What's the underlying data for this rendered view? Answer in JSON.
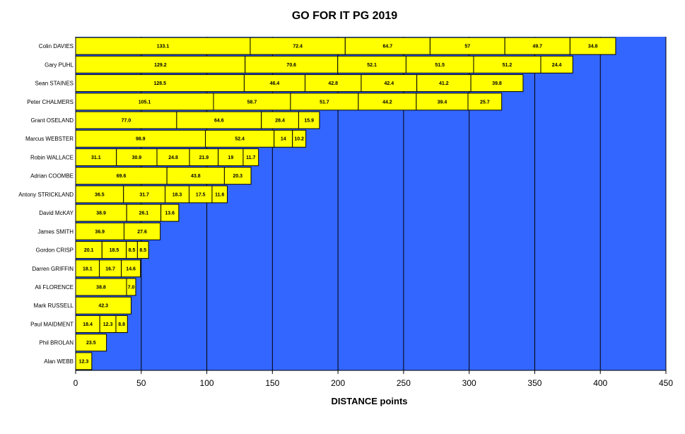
{
  "chart_data": {
    "type": "bar",
    "orientation": "horizontal",
    "stacked": true,
    "title": "GO FOR IT PG 2019",
    "xlabel": "DISTANCE points",
    "ylabel": "",
    "xlim": [
      0,
      450
    ],
    "xticks": [
      0,
      50,
      100,
      150,
      200,
      250,
      300,
      350,
      400,
      450
    ],
    "grid": "vertical",
    "legend": "none",
    "colors": {
      "plot_area": "#3366ff",
      "bar": "#ffff00",
      "bar_edge": "#000000",
      "gridline": "#000000"
    },
    "categories": [
      "Colin DAVIES",
      "Gary PUHL",
      "Sean STAINES",
      "Peter CHALMERS",
      "Grant OSELAND",
      "Marcus WEBSTER",
      "Robin WALLACE",
      "Adrian COOMBE",
      "Antony STRICKLAND",
      "David McKAY",
      "James SMITH",
      "Gordon CRISP",
      "Darren GRIFFIN",
      "Ali FLORENCE",
      "Mark RUSSELL",
      "Paul MAIDMENT",
      "Phil BROLAN",
      "Alan WEBB"
    ],
    "segments": [
      [
        133.1,
        72.4,
        64.7,
        57,
        49.7,
        34.8
      ],
      [
        129.2,
        70.6,
        52.1,
        51.5,
        51.2,
        24.4
      ],
      [
        128.5,
        46.4,
        42.8,
        42.4,
        41.2,
        39.8
      ],
      [
        105.1,
        58.7,
        51.7,
        44.2,
        39.4,
        25.7
      ],
      [
        77.0,
        64.6,
        28.4,
        15.9
      ],
      [
        98.9,
        52.4,
        14,
        10.2
      ],
      [
        31.1,
        30.9,
        24.8,
        21.9,
        19,
        11.7
      ],
      [
        69.6,
        43.8,
        20.3
      ],
      [
        36.5,
        31.7,
        18.3,
        17.5,
        11.6
      ],
      [
        38.9,
        26.1,
        13.6
      ],
      [
        36.9,
        27.6
      ],
      [
        20.1,
        18.5,
        8.5,
        8.5
      ],
      [
        18.1,
        16.7,
        14.6
      ],
      [
        38.8,
        7.0
      ],
      [
        42.3
      ],
      [
        18.4,
        12.3,
        8.8
      ],
      [
        23.5
      ],
      [
        12.3
      ]
    ],
    "segment_labels": [
      [
        "133.1",
        "72.4",
        "64.7",
        "57",
        "49.7",
        "34.8"
      ],
      [
        "129.2",
        "70.6",
        "52.1",
        "51.5",
        "51.2",
        "24.4"
      ],
      [
        "128.5",
        "46.4",
        "42.8",
        "42.4",
        "41.2",
        "39.8"
      ],
      [
        "105.1",
        "58.7",
        "51.7",
        "44.2",
        "39.4",
        "25.7"
      ],
      [
        "77.0",
        "64.6",
        "28.4",
        "15.9"
      ],
      [
        "98.9",
        "52.4",
        "14",
        "10.2"
      ],
      [
        "31.1",
        "30.9",
        "24.8",
        "21.9",
        "19",
        "11.7"
      ],
      [
        "69.6",
        "43.8",
        "20.3"
      ],
      [
        "36.5",
        "31.7",
        "18.3",
        "17.5",
        "11.6"
      ],
      [
        "38.9",
        "26.1",
        "13.6"
      ],
      [
        "36.9",
        "27.6"
      ],
      [
        "20.1",
        "18.5",
        "8.5",
        "8.5"
      ],
      [
        "18.1",
        "16.7",
        "14.6"
      ],
      [
        "38.8",
        "7.0"
      ],
      [
        "42.3"
      ],
      [
        "18.4",
        "12.3",
        "8.8"
      ],
      [
        "23.5"
      ],
      [
        "12.3"
      ]
    ]
  }
}
